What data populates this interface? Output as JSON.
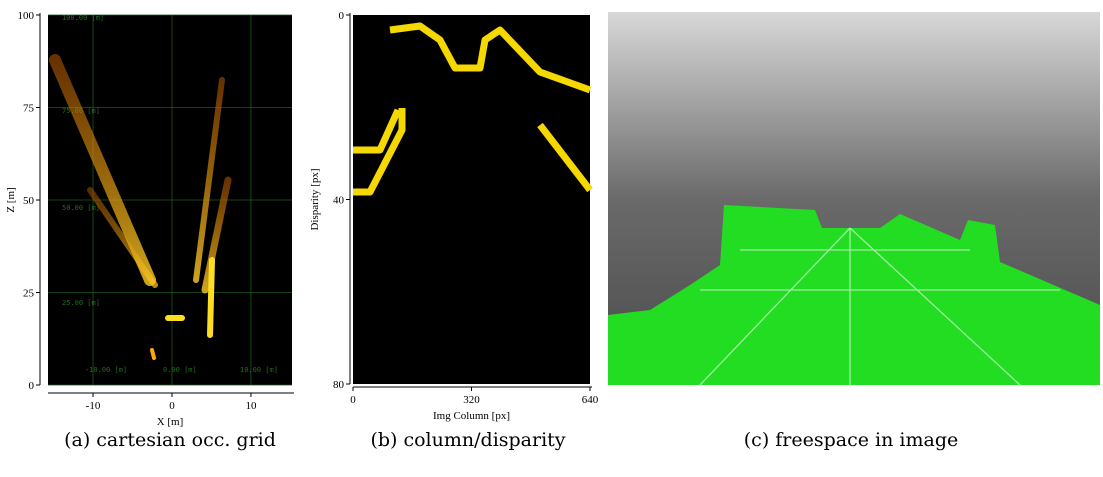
{
  "figure": {
    "panels": [
      {
        "x_label": "X [m]",
        "y_label": "Z [m]",
        "xlim": [
          -15.7,
          15.2
        ],
        "ylim": [
          0,
          100
        ],
        "xticks": [
          -10,
          0,
          10
        ],
        "yticks": [
          0,
          25,
          50,
          75,
          100
        ],
        "grid_labels": [
          "100.00 [m]",
          "75.00 [m]",
          "50.00 [m]",
          "25.00 [m]",
          "-10.00 [m]",
          "0.00 [m]",
          "10.00 [m]"
        ],
        "caption": "(a) cartesian occ. grid"
      },
      {
        "x_label": "Img Column [px]",
        "y_label": "Disparity [px]",
        "xlim": [
          0,
          640
        ],
        "ylim": [
          0,
          80
        ],
        "xticks": [
          0,
          320,
          640
        ],
        "yticks": [
          0,
          40,
          80
        ],
        "caption": "(b) column/disparity"
      },
      {
        "caption": "(c) freespace in image"
      }
    ]
  }
}
